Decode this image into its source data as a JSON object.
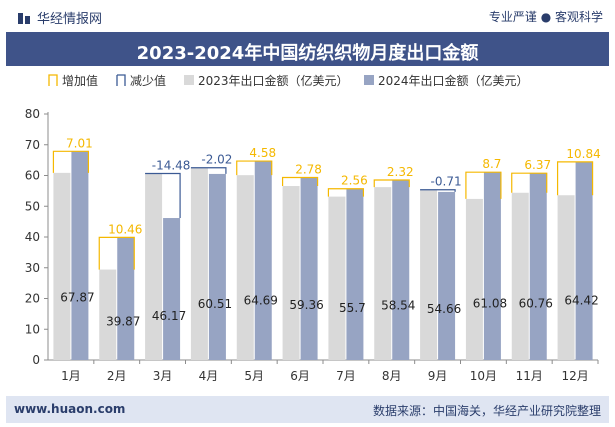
{
  "header": {
    "brand": "华经情报网",
    "tagline": "专业严谨 ● 客观科学",
    "title": "2023-2024年中国纺织织物月度出口金额"
  },
  "footer": {
    "website": "www.huaon.com",
    "source": "数据来源：中国海关，华经产业研究院整理"
  },
  "colors": {
    "increase_outline": "#f5b800",
    "decrease_outline": "#3b5a94",
    "series_2023": "#d9d9d9",
    "series_2024": "#97a4c3",
    "increase_label": "#f5b800",
    "decrease_label": "#3b5a94"
  },
  "chart_data": {
    "type": "bar",
    "categories": [
      "1月",
      "2月",
      "3月",
      "4月",
      "5月",
      "6月",
      "7月",
      "8月",
      "9月",
      "10月",
      "11月",
      "12月"
    ],
    "series": [
      {
        "name": "2023年出口金额（亿美元）",
        "values": [
          60.86,
          29.41,
          60.65,
          62.53,
          60.11,
          56.58,
          53.14,
          56.22,
          55.37,
          52.38,
          54.39,
          53.58
        ]
      },
      {
        "name": "2024年出口金额（亿美元）",
        "values": [
          67.87,
          39.87,
          46.17,
          60.51,
          64.69,
          59.36,
          55.7,
          58.54,
          54.66,
          61.08,
          60.76,
          64.42
        ]
      }
    ],
    "change": {
      "values": [
        7.01,
        10.46,
        -14.48,
        -2.02,
        4.58,
        2.78,
        2.56,
        2.32,
        -0.71,
        8.7,
        6.37,
        10.84
      ],
      "labels": [
        "7.01",
        "10.46",
        "-14.48",
        "-2.02",
        "4.58",
        "2.78",
        "2.56",
        "2.32",
        "-0.71",
        "8.7",
        "6.37",
        "10.84"
      ]
    },
    "value_labels_2024": [
      "67.87",
      "39.87",
      "46.17",
      "60.51",
      "64.69",
      "59.36",
      "55.7",
      "58.54",
      "54.66",
      "61.08",
      "60.76",
      "64.42"
    ],
    "legend": [
      {
        "key": "increase",
        "label": "增加值"
      },
      {
        "key": "decrease",
        "label": "减少值"
      },
      {
        "key": "s2023",
        "label": "2023年出口金额（亿美元）"
      },
      {
        "key": "s2024",
        "label": "2024年出口金额（亿美元）"
      }
    ],
    "yticks": [
      "0",
      "10",
      "20",
      "30",
      "40",
      "50",
      "60",
      "70",
      "80"
    ],
    "ylim": [
      0,
      80
    ],
    "grid": false,
    "legend_position": "top-left"
  }
}
